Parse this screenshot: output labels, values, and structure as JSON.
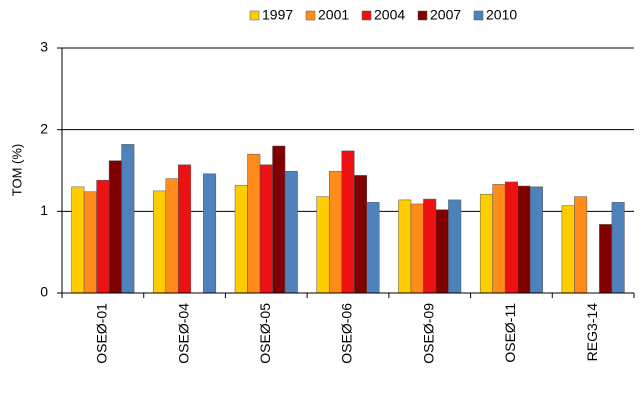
{
  "chart_data": {
    "type": "bar",
    "y_label": "TOM (%)",
    "categories": [
      "OSEØ-01",
      "OSEØ-04",
      "OSEØ-05",
      "OSEØ-06",
      "OSEØ-09",
      "OSEØ-11",
      "REG3-14"
    ],
    "series": [
      {
        "name": "1997",
        "color": "#ffcc00",
        "values": [
          1.3,
          1.25,
          1.32,
          1.18,
          1.14,
          1.21,
          1.07
        ]
      },
      {
        "name": "2001",
        "color": "#ff8c1a",
        "values": [
          1.24,
          1.4,
          1.7,
          1.49,
          1.09,
          1.33,
          1.18
        ]
      },
      {
        "name": "2004",
        "color": "#ee1111",
        "values": [
          1.38,
          1.57,
          1.57,
          1.74,
          1.15,
          1.36,
          null
        ]
      },
      {
        "name": "2007",
        "color": "#800000",
        "values": [
          1.62,
          null,
          1.8,
          1.44,
          1.02,
          1.31,
          0.84
        ]
      },
      {
        "name": "2010",
        "color": "#4f81bd",
        "values": [
          1.82,
          1.46,
          1.49,
          1.11,
          1.14,
          1.3,
          1.11
        ]
      }
    ],
    "ylim": [
      0,
      3
    ],
    "yticks": [
      0,
      1,
      2,
      3
    ],
    "grid": true,
    "legend": "top"
  }
}
